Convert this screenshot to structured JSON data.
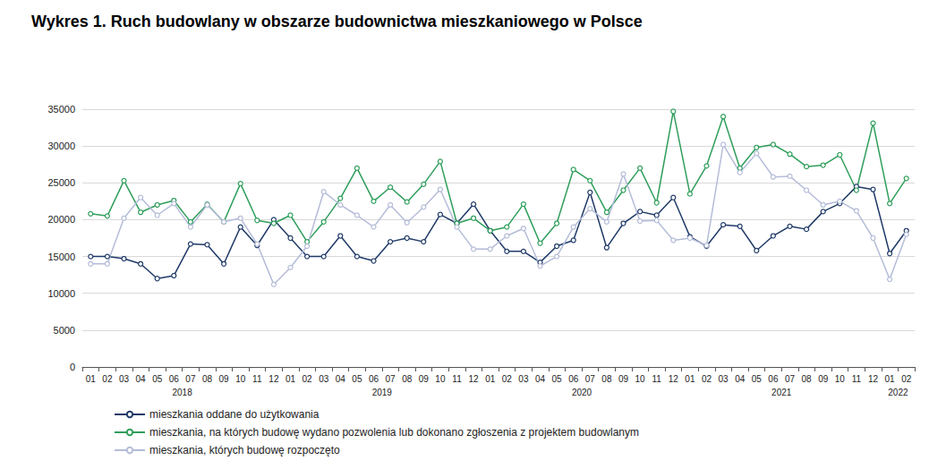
{
  "chart_data": {
    "type": "line",
    "title": "Wykres 1. Ruch budowlany w obszarze budownictwa mieszkaniowego w Polsce",
    "categories": [
      "01",
      "02",
      "03",
      "04",
      "05",
      "06",
      "07",
      "08",
      "09",
      "10",
      "11",
      "12",
      "01",
      "02",
      "03",
      "04",
      "05",
      "06",
      "07",
      "08",
      "09",
      "10",
      "11",
      "12",
      "01",
      "02",
      "03",
      "04",
      "05",
      "06",
      "07",
      "08",
      "09",
      "10",
      "11",
      "12",
      "01",
      "02",
      "03",
      "04",
      "05",
      "06",
      "07",
      "08",
      "09",
      "10",
      "11",
      "12",
      "01",
      "02"
    ],
    "years": [
      "2018",
      "2019",
      "2020",
      "2021",
      "2022"
    ],
    "series": [
      {
        "name": "mieszkania oddane do użytkowania",
        "color": "#1f3a68",
        "marker": "circle",
        "values": [
          15000,
          15000,
          14700,
          14000,
          12000,
          12400,
          16700,
          16600,
          14000,
          19000,
          16500,
          20000,
          17500,
          15000,
          15000,
          17800,
          15000,
          14400,
          17000,
          17500,
          17000,
          20700,
          19500,
          22100,
          18500,
          15700,
          15700,
          14200,
          16400,
          17200,
          23700,
          16200,
          19500,
          21100,
          20600,
          23000,
          17700,
          16400,
          19300,
          19100,
          15800,
          17800,
          19100,
          18700,
          21100,
          22200,
          24500,
          24100,
          15400,
          18500
        ]
      },
      {
        "name": "mieszkania, na których budowę wydano pozwolenia lub dokonano zgłoszenia z projektem budowlanym",
        "color": "#2e9e5b",
        "marker": "circle",
        "values": [
          20800,
          20500,
          25300,
          21000,
          22000,
          22600,
          19700,
          22100,
          19700,
          24900,
          19900,
          19500,
          20600,
          17000,
          19700,
          22900,
          27000,
          22500,
          24400,
          22400,
          24800,
          27900,
          19500,
          20200,
          18500,
          19000,
          22100,
          16800,
          19500,
          26800,
          25300,
          21000,
          24000,
          27000,
          22300,
          34700,
          23500,
          27300,
          34000,
          27000,
          29800,
          30200,
          28900,
          27200,
          27400,
          28800,
          24000,
          33100,
          22200,
          25600
        ]
      },
      {
        "name": "mieszkania, których budowę rozpoczęto",
        "color": "#b4bcd8",
        "marker": "circle",
        "values": [
          14000,
          14000,
          20200,
          23000,
          20600,
          22200,
          19000,
          22000,
          19700,
          20200,
          16700,
          11200,
          13500,
          16400,
          23800,
          22000,
          20600,
          19000,
          22000,
          19600,
          21700,
          24100,
          19000,
          16000,
          16000,
          17800,
          18800,
          13700,
          15000,
          19000,
          21500,
          19700,
          26200,
          19800,
          19900,
          17200,
          17500,
          16500,
          30200,
          26400,
          29000,
          25800,
          25900,
          24000,
          22000,
          22500,
          21200,
          17500,
          11900,
          18000
        ]
      }
    ],
    "ylim": [
      0,
      35000
    ],
    "yticks": [
      0,
      5000,
      10000,
      15000,
      20000,
      25000,
      30000,
      35000
    ],
    "grid": true,
    "legend": "bottom-left"
  }
}
